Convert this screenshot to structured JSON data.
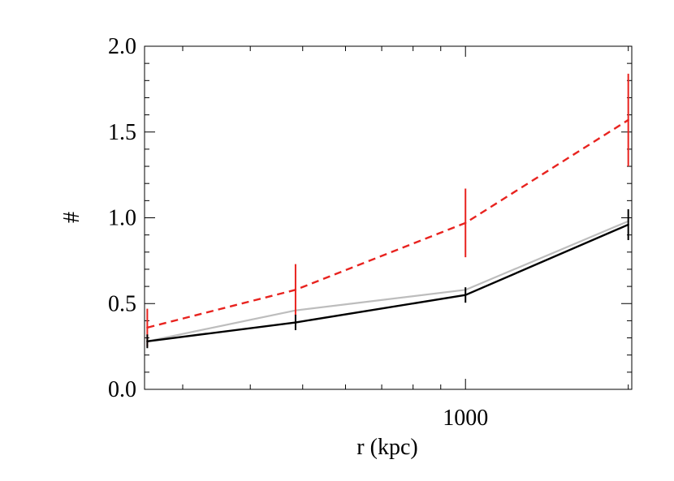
{
  "chart_data": {
    "type": "line",
    "xlabel": "r (kpc)",
    "ylabel": "#",
    "x_scale": "log",
    "xlim": [
      255,
      2030
    ],
    "ylim": [
      0.0,
      2.0
    ],
    "x_ticks": [
      {
        "value": 1000,
        "label": "1000"
      }
    ],
    "x_minor_ticks": [
      300,
      400,
      500,
      600,
      700,
      800,
      900,
      2000
    ],
    "y_ticks": [
      {
        "value": 0.0,
        "label": "0.0"
      },
      {
        "value": 0.5,
        "label": "0.5"
      },
      {
        "value": 1.0,
        "label": "1.0"
      },
      {
        "value": 1.5,
        "label": "1.5"
      },
      {
        "value": 2.0,
        "label": "2.0"
      }
    ],
    "grid": false,
    "series": [
      {
        "color": "#bdbdbd",
        "style": "solid",
        "x": [
          258,
          485,
          1000,
          2000
        ],
        "y": [
          0.28,
          0.46,
          0.58,
          0.98
        ],
        "errors": []
      },
      {
        "color": "#e8231f",
        "style": "dashed",
        "x": [
          258,
          485,
          1000,
          2000
        ],
        "y": [
          0.36,
          0.58,
          0.97,
          1.57
        ],
        "errors": [
          0.11,
          0.15,
          0.2,
          0.27
        ]
      },
      {
        "color": "#000000",
        "style": "solid",
        "x": [
          258,
          485,
          1000,
          2000
        ],
        "y": [
          0.28,
          0.39,
          0.55,
          0.96
        ],
        "errors": [
          0.04,
          0.045,
          0.045,
          0.09
        ]
      }
    ]
  }
}
